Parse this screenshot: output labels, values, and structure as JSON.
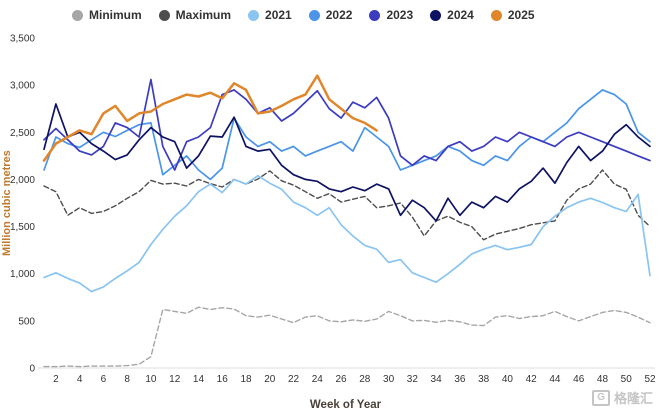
{
  "watermark": {
    "logo_text": "G",
    "text": "格隆汇"
  },
  "chart_data": {
    "type": "line",
    "title": "",
    "xlabel": "Week of Year",
    "ylabel": "Million cubic metres",
    "ylim": [
      0,
      3500
    ],
    "ytick_values": [
      0,
      500,
      1000,
      1500,
      2000,
      2500,
      3000,
      3500
    ],
    "ytick_labels": [
      "0",
      "500",
      "1,000",
      "1,500",
      "2,000",
      "2,500",
      "3,000",
      "3,500"
    ],
    "xticks": [
      2,
      4,
      6,
      8,
      10,
      12,
      14,
      16,
      18,
      20,
      22,
      24,
      26,
      28,
      30,
      32,
      34,
      36,
      38,
      40,
      42,
      44,
      46,
      48,
      50,
      52
    ],
    "x_weeks": 52,
    "grid": false,
    "legend_position": "top",
    "series": [
      {
        "name": "Minimum",
        "color": "#a6a6a6",
        "dash": true,
        "width": 1.4,
        "values": [
          15,
          15,
          20,
          15,
          20,
          20,
          20,
          25,
          40,
          120,
          620,
          600,
          580,
          645,
          620,
          640,
          625,
          555,
          540,
          560,
          520,
          480,
          540,
          555,
          500,
          490,
          510,
          495,
          520,
          600,
          555,
          500,
          505,
          485,
          505,
          490,
          455,
          450,
          540,
          555,
          525,
          545,
          555,
          600,
          545,
          500,
          545,
          590,
          610,
          590,
          540,
          480
        ]
      },
      {
        "name": "Maximum",
        "color": "#4d4d4d",
        "dash": true,
        "width": 1.4,
        "values": [
          1930,
          1870,
          1620,
          1700,
          1640,
          1660,
          1720,
          1800,
          1870,
          1990,
          1950,
          1960,
          1930,
          2000,
          1955,
          1920,
          2000,
          1950,
          2005,
          2090,
          1985,
          1940,
          1870,
          1800,
          1850,
          1760,
          1790,
          1820,
          1700,
          1720,
          1750,
          1600,
          1400,
          1560,
          1610,
          1545,
          1500,
          1360,
          1420,
          1450,
          1480,
          1520,
          1540,
          1560,
          1780,
          1900,
          1950,
          2100,
          1950,
          1895,
          1620,
          1500
        ]
      },
      {
        "name": "2021",
        "color": "#8ac4f0",
        "dash": false,
        "width": 1.7,
        "values": [
          960,
          1010,
          950,
          900,
          810,
          860,
          950,
          1030,
          1120,
          1310,
          1470,
          1610,
          1720,
          1870,
          1950,
          1860,
          2000,
          1950,
          2040,
          1960,
          1895,
          1760,
          1700,
          1620,
          1700,
          1520,
          1400,
          1300,
          1260,
          1120,
          1150,
          1010,
          960,
          910,
          1000,
          1100,
          1210,
          1260,
          1300,
          1255,
          1280,
          1310,
          1500,
          1610,
          1700,
          1760,
          1800,
          1755,
          1700,
          1660,
          1840,
          980
        ]
      },
      {
        "name": "2022",
        "color": "#4a95e8",
        "dash": false,
        "width": 1.7,
        "values": [
          2100,
          2450,
          2380,
          2340,
          2420,
          2500,
          2455,
          2520,
          2580,
          2600,
          2050,
          2150,
          2250,
          2100,
          2000,
          2120,
          2650,
          2450,
          2350,
          2400,
          2300,
          2350,
          2250,
          2300,
          2350,
          2400,
          2300,
          2550,
          2450,
          2350,
          2100,
          2150,
          2200,
          2250,
          2350,
          2300,
          2200,
          2150,
          2250,
          2200,
          2350,
          2450,
          2400,
          2500,
          2600,
          2750,
          2850,
          2950,
          2900,
          2800,
          2500,
          2400
        ]
      },
      {
        "name": "2023",
        "color": "#3c3cc0",
        "dash": false,
        "width": 1.7,
        "values": [
          2420,
          2540,
          2420,
          2300,
          2260,
          2350,
          2600,
          2550,
          2450,
          3060,
          2350,
          2100,
          2400,
          2450,
          2550,
          2900,
          2950,
          2850,
          2700,
          2760,
          2620,
          2700,
          2820,
          2940,
          2750,
          2650,
          2820,
          2760,
          2870,
          2650,
          2250,
          2150,
          2250,
          2200,
          2350,
          2400,
          2300,
          2350,
          2450,
          2400,
          2500,
          2450,
          2400,
          2350,
          2450,
          2500,
          2450,
          2400,
          2350,
          2300,
          2250,
          2200
        ]
      },
      {
        "name": "2024",
        "color": "#0d1362",
        "dash": false,
        "width": 1.7,
        "values": [
          2320,
          2800,
          2450,
          2500,
          2380,
          2300,
          2210,
          2260,
          2420,
          2550,
          2450,
          2400,
          2120,
          2250,
          2460,
          2450,
          2660,
          2350,
          2300,
          2320,
          2150,
          2050,
          2000,
          1980,
          1900,
          1870,
          1920,
          1880,
          1950,
          1900,
          1620,
          1780,
          1700,
          1560,
          1800,
          1620,
          1760,
          1700,
          1820,
          1760,
          1900,
          1980,
          2120,
          1960,
          2180,
          2350,
          2200,
          2300,
          2480,
          2580,
          2450,
          2350
        ]
      },
      {
        "name": "2025",
        "color": "#e0862b",
        "dash": false,
        "width": 2.5,
        "values": [
          2200,
          2380,
          2450,
          2520,
          2480,
          2700,
          2780,
          2620,
          2700,
          2720,
          2800,
          2850,
          2900,
          2880,
          2920,
          2860,
          3020,
          2950,
          2700,
          2720,
          2780,
          2850,
          2900,
          3100,
          2850,
          2750,
          2650,
          2600,
          2520
        ]
      }
    ]
  }
}
